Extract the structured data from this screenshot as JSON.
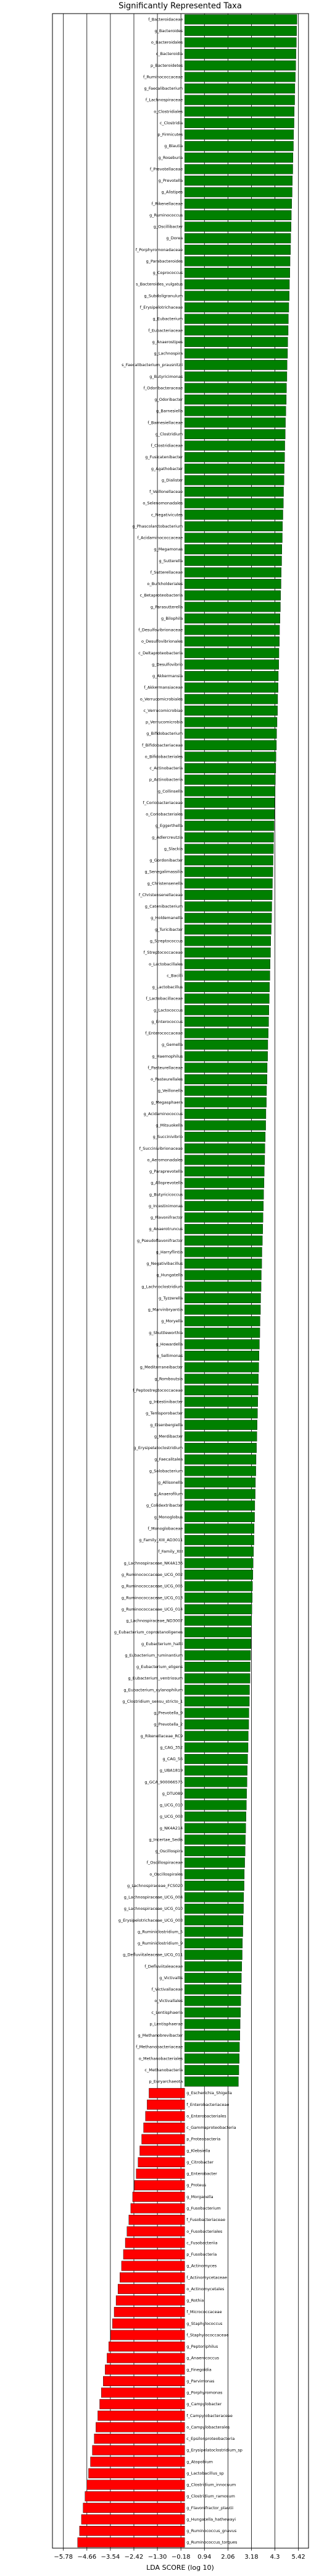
{
  "chart_data": {
    "type": "lda_bar",
    "title": "Significantly Represented Taxa",
    "x_label": "LDA SCORE (log 10)",
    "xlim": [
      -6.3,
      5.9
    ],
    "xticks": [
      {
        "value": -5.78,
        "label": "−5.78"
      },
      {
        "value": -4.66,
        "label": "−4.66"
      },
      {
        "value": -3.54,
        "label": "−3.54"
      },
      {
        "value": -2.42,
        "label": "−2.42"
      },
      {
        "value": -1.3,
        "label": "−1.30"
      },
      {
        "value": -0.18,
        "label": "−0.18"
      },
      0.94,
      2.06,
      3.18,
      4.3,
      5.42
    ],
    "grid": true,
    "color_positive": "#008000",
    "color_negative": "#ff0000",
    "categories": [
      "f_Bacteroidaceae",
      "g_Bacteroides",
      "o_Bacteroidales",
      "c_Bacteroidia",
      "p_Bacteroidetes",
      "f_Ruminococcaceae",
      "g_Faecalibacterium",
      "f_Lachnospiraceae",
      "o_Clostridiales",
      "c_Clostridia",
      "p_Firmicutes",
      "g_Blautia",
      "g_Roseburia",
      "f_Prevotellaceae",
      "g_Prevotella",
      "g_Alistipes",
      "f_Rikenellaceae",
      "g_Ruminococcus",
      "g_Oscillibacter",
      "g_Dorea",
      "f_Porphyromonadaceae",
      "g_Parabacteroides",
      "g_Coprococcus",
      "s_Bacteroides_vulgatus",
      "g_Subdoligranulum",
      "f_Erysipelotrichaceae",
      "g_Eubacterium",
      "f_Eubacteriaceae",
      "g_Anaerostipes",
      "g_Lachnospira",
      "s_Faecalibacterium_prausnitzii",
      "g_Butyricimonas",
      "f_Odoribacteraceae",
      "g_Odoribacter",
      "g_Barnesiella",
      "f_Barnesiellaceae",
      "g_Clostridium",
      "f_Clostridiaceae",
      "g_Fusicatenibacter",
      "g_Agathobacter",
      "g_Dialister",
      "f_Veillonellaceae",
      "o_Selenomonadales",
      "c_Negativicutes",
      "g_Phascolarctobacterium",
      "f_Acidaminococcaceae",
      "g_Megamonas",
      "g_Sutterella",
      "f_Sutterellaceae",
      "o_Burkholderiales",
      "c_Betaproteobacteria",
      "g_Parasutterella",
      "g_Bilophila",
      "f_Desulfovibrionaceae",
      "o_Desulfovibrionales",
      "c_Deltaproteobacteria",
      "g_Desulfovibrio",
      "g_Akkermansia",
      "f_Akkermansiaceae",
      "o_Verrucomicrobiales",
      "c_Verrucomicrobiae",
      "p_Verrucomicrobia",
      "g_Bifidobacterium",
      "f_Bifidobacteriaceae",
      "o_Bifidobacteriales",
      "c_Actinobacteria",
      "p_Actinobacteria",
      "g_Collinsella",
      "f_Coriobacteriaceae",
      "o_Coriobacteriales",
      "g_Eggerthella",
      "g_Adlercreutzia",
      "g_Slackia",
      "g_Gordonibacter",
      "g_Senegalimassilia",
      "g_Christensenella",
      "f_Christensenellaceae",
      "g_Catenibacterium",
      "g_Holdemanella",
      "g_Turicibacter",
      "g_Streptococcus",
      "f_Streptococcaceae",
      "o_Lactobacillales",
      "c_Bacilli",
      "g_Lactobacillus",
      "f_Lactobacillaceae",
      "g_Lactococcus",
      "g_Enterococcus",
      "f_Enterococcaceae",
      "g_Gemella",
      "g_Haemophilus",
      "f_Pasteurellaceae",
      "o_Pasteurellales",
      "g_Veillonella",
      "g_Megasphaera",
      "g_Acidaminococcus",
      "g_Mitsuokella",
      "g_Succinivibrio",
      "f_Succinivibrionaceae",
      "o_Aeromonadales",
      "g_Paraprevotella",
      "g_Alloprevotella",
      "g_Butyricicoccus",
      "g_Intestinimonas",
      "g_Flavonifractor",
      "g_Anaerotruncus",
      "g_Pseudoflavonifractor",
      "g_Harryflintia",
      "g_Negativibacillus",
      "g_Hungatella",
      "g_Lachnoclostridium",
      "g_Tyzzerella",
      "g_Marvinbryantia",
      "g_Moryella",
      "g_Shuttleworthia",
      "g_Howardella",
      "g_Sellimonas",
      "g_Mediterraneibacter",
      "g_Romboutsia",
      "f_Peptostreptococcaceae",
      "g_Intestinibacter",
      "g_Terrisporobacter",
      "g_Eisenbergiella",
      "g_Merdibacter",
      "g_Erysipelatoclostridium",
      "g_Faecalitalea",
      "g_Solobacterium",
      "g_Allisonella",
      "g_Anaerofilum",
      "g_Colidextribacter",
      "g_Monoglobus",
      "f_Monoglobaceae",
      "g_Family_XIII_AD3011",
      "f_Family_XIII",
      "g_Lachnospiraceae_NK4A136",
      "g_Ruminococcaceae_UCG_002",
      "g_Ruminococcaceae_UCG_005",
      "g_Ruminococcaceae_UCG_013",
      "g_Ruminococcaceae_UCG_014",
      "g_Lachnospiraceae_ND3007",
      "g_Eubacterium_coprostanoligenes",
      "g_Eubacterium_hallii",
      "g_Eubacterium_ruminantium",
      "g_Eubacterium_eligens",
      "g_Eubacterium_ventriosum",
      "g_Eubacterium_xylanophilum",
      "g_Clostridium_sensu_stricto_1",
      "g_Prevotella_9",
      "g_Prevotella_2",
      "g_Rikenellaceae_RC9",
      "g_CAG_352",
      "g_CAG_56",
      "g_UBA1819",
      "g_GCA_900066575",
      "g_DTU089",
      "g_UCG_010",
      "g_UCG_003",
      "g_NK4A214",
      "g_Incertae_Sedis",
      "g_Oscillospira",
      "f_Oscillospiraceae",
      "o_Oscillospirales",
      "g_Lachnospiraceae_FCS020",
      "g_Lachnospiraceae_UCG_004",
      "g_Lachnospiraceae_UCG_010",
      "g_Erysipelotrichaceae_UCG_003",
      "g_Ruminiclostridium_5",
      "g_Ruminiclostridium_9",
      "g_Defluviitaleaceae_UCG_011",
      "f_Defluviitaleaceae",
      "g_Victivallis",
      "f_Victivallaceae",
      "o_Victivallales",
      "c_Lentisphaeria",
      "p_Lentisphaerae",
      "g_Methanobrevibacter",
      "f_Methanobacteriaceae",
      "o_Methanobacteriales",
      "c_Methanobacteria",
      "p_Euryarchaeota",
      "g_Escherichia_Shigella",
      "f_Enterobacteriaceae",
      "o_Enterobacteriales",
      "c_Gammaproteobacteria",
      "p_Proteobacteria",
      "g_Klebsiella",
      "g_Citrobacter",
      "g_Enterobacter",
      "g_Proteus",
      "g_Morganella",
      "g_Fusobacterium",
      "f_Fusobacteriaceae",
      "o_Fusobacteriales",
      "c_Fusobacteriia",
      "p_Fusobacteria",
      "g_Actinomyces",
      "f_Actinomycetaceae",
      "o_Actinomycetales",
      "g_Rothia",
      "f_Micrococcaceae",
      "g_Staphylococcus",
      "f_Staphylococcaceae",
      "g_Peptoniphilus",
      "g_Anaerococcus",
      "g_Finegoldia",
      "g_Parvimonas",
      "g_Porphyromonas",
      "g_Campylobacter",
      "f_Campylobacteraceae",
      "o_Campylobacterales",
      "c_Epsilonproteobacteria",
      "g_Erysipelatoclostridium_sp",
      "g_Atopobium",
      "g_Lactobacillus_sp",
      "g_Clostridium_innocuum",
      "g_Clostridium_ramosum",
      "g_Flavonifractor_plautii",
      "g_Hungatella_hathewayi",
      "g_Ruminococcus_gnavus",
      "g_Ruminococcus_torques"
    ],
    "values": [
      5.35,
      5.33,
      5.32,
      5.3,
      5.29,
      5.27,
      5.25,
      5.24,
      5.22,
      5.21,
      5.19,
      5.18,
      5.16,
      5.15,
      5.13,
      5.12,
      5.1,
      5.08,
      5.07,
      5.05,
      5.04,
      5.02,
      5.01,
      4.99,
      4.98,
      4.96,
      4.94,
      4.93,
      4.91,
      4.9,
      4.88,
      4.87,
      4.85,
      4.84,
      4.82,
      4.8,
      4.79,
      4.77,
      4.76,
      4.74,
      4.73,
      4.71,
      4.7,
      4.68,
      4.66,
      4.65,
      4.63,
      4.62,
      4.6,
      4.59,
      4.57,
      4.56,
      4.54,
      4.52,
      4.51,
      4.49,
      4.48,
      4.46,
      4.45,
      4.43,
      4.42,
      4.4,
      4.38,
      4.37,
      4.35,
      4.34,
      4.32,
      4.31,
      4.29,
      4.28,
      4.26,
      4.24,
      4.23,
      4.21,
      4.2,
      4.18,
      4.17,
      4.15,
      4.14,
      4.12,
      4.1,
      4.09,
      4.07,
      4.06,
      4.04,
      4.03,
      4.01,
      4.0,
      3.98,
      3.96,
      3.95,
      3.93,
      3.92,
      3.9,
      3.89,
      3.87,
      3.86,
      3.84,
      3.82,
      3.81,
      3.79,
      3.78,
      3.76,
      3.75,
      3.73,
      3.72,
      3.7,
      3.68,
      3.67,
      3.65,
      3.64,
      3.62,
      3.61,
      3.59,
      3.58,
      3.56,
      3.54,
      3.53,
      3.51,
      3.5,
      3.48,
      3.47,
      3.45,
      3.44,
      3.42,
      3.4,
      3.39,
      3.37,
      3.36,
      3.34,
      3.33,
      3.31,
      3.3,
      3.28,
      3.26,
      3.25,
      3.23,
      3.22,
      3.2,
      3.19,
      3.17,
      3.16,
      3.14,
      3.12,
      3.11,
      3.09,
      3.08,
      3.06,
      3.05,
      3.03,
      3.02,
      3.0,
      2.98,
      2.97,
      2.95,
      2.94,
      2.92,
      2.91,
      2.89,
      2.88,
      2.86,
      2.84,
      2.83,
      2.81,
      2.8,
      2.78,
      2.77,
      2.75,
      2.74,
      2.72,
      2.7,
      2.69,
      2.67,
      2.66,
      2.64,
      2.63,
      2.61,
      2.6,
      2.58,
      2.56,
      -1.7,
      -1.79,
      -1.87,
      -1.96,
      -2.05,
      -2.14,
      -2.22,
      -2.31,
      -2.4,
      -2.48,
      -2.57,
      -2.66,
      -2.75,
      -2.83,
      -2.92,
      -3.01,
      -3.09,
      -3.18,
      -3.27,
      -3.36,
      -3.44,
      -3.53,
      -3.62,
      -3.7,
      -3.79,
      -3.88,
      -3.97,
      -4.05,
      -4.14,
      -4.23,
      -4.31,
      -4.4,
      -4.49,
      -4.58,
      -4.66,
      -4.75,
      -4.84,
      -4.92,
      -5.01,
      -5.1
    ]
  }
}
